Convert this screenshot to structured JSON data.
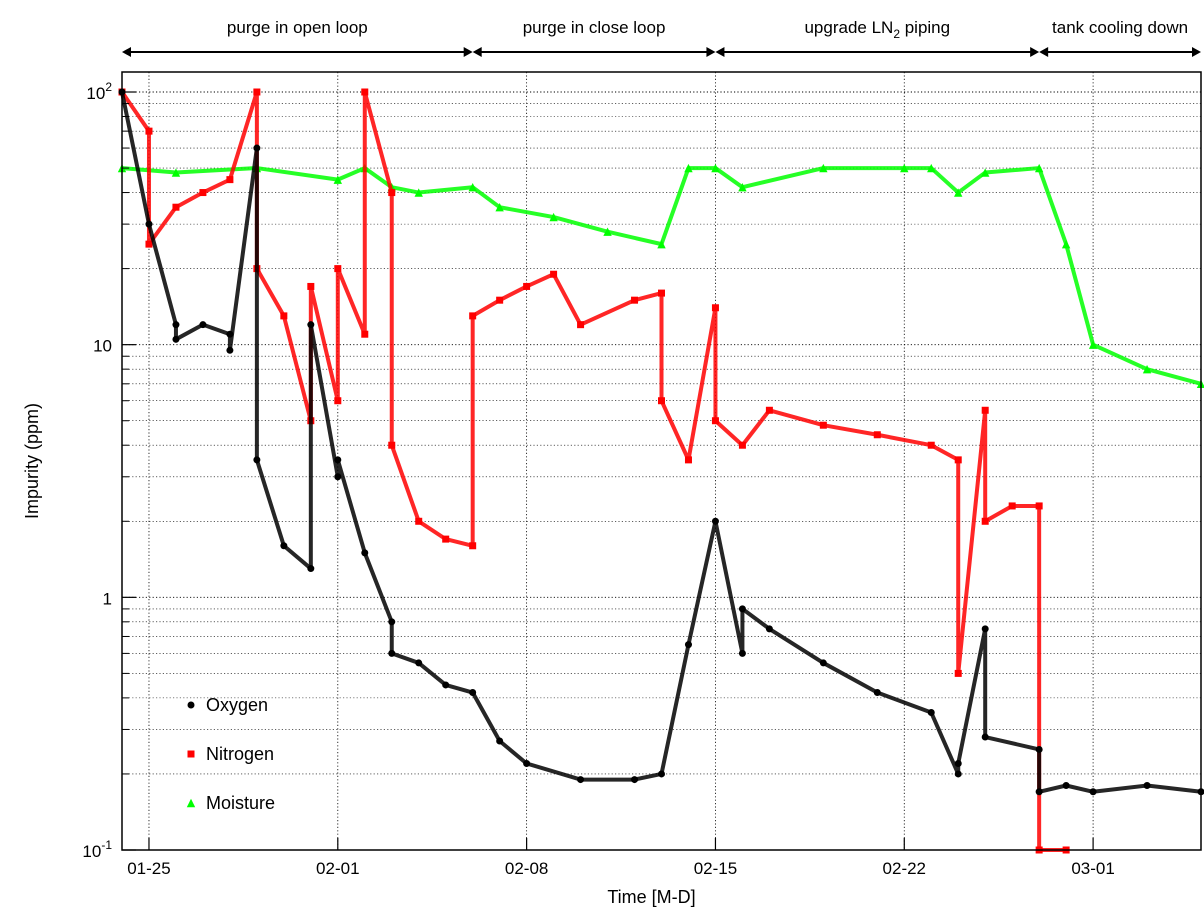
{
  "chart_data": {
    "type": "scatter",
    "title": "",
    "xlabel": "Time [M-D]",
    "ylabel": "Impurity (ppm)",
    "yscale": "log",
    "ylim": [
      0.1,
      120
    ],
    "xlim": [
      "01-24",
      "03-05"
    ],
    "x_ticks": [
      "01-25",
      "02-01",
      "02-08",
      "02-15",
      "02-22",
      "03-01"
    ],
    "y_ticks": [
      {
        "value": 100,
        "base": "10",
        "exp": "2"
      },
      {
        "value": 10,
        "text": "10"
      },
      {
        "value": 1,
        "text": "1"
      },
      {
        "value": 0.1,
        "base": "10",
        "exp": "-1"
      }
    ],
    "grid": true,
    "legend_position": "bottom-left",
    "phases": [
      {
        "label": "purge in open loop",
        "start": "01-24",
        "end": "02-06"
      },
      {
        "label": "purge in close loop",
        "start": "02-06",
        "end": "02-15"
      },
      {
        "label_parts": [
          "upgrade LN",
          "2",
          " piping"
        ],
        "start": "02-15",
        "end": "02-27"
      },
      {
        "label": "tank cooling down",
        "start": "02-27",
        "end": "03-05"
      }
    ],
    "series": [
      {
        "name": "Oxygen",
        "color": "#000000",
        "marker": "circle",
        "x": [
          "01-24",
          "01-25",
          "01-26",
          "01-26",
          "01-27",
          "01-28",
          "01-28",
          "01-29",
          "01-29",
          "01-30",
          "01-31",
          "01-31",
          "02-01",
          "02-01",
          "02-02",
          "02-03",
          "02-03",
          "02-04",
          "02-05",
          "02-06",
          "02-07",
          "02-08",
          "02-10",
          "02-12",
          "02-13",
          "02-14",
          "02-15",
          "02-16",
          "02-16",
          "02-17",
          "02-19",
          "02-21",
          "02-23",
          "02-24",
          "02-24",
          "02-25",
          "02-25",
          "02-27",
          "02-27",
          "02-28",
          "03-01",
          "03-03",
          "03-05"
        ],
        "y": [
          100,
          30,
          12,
          10.5,
          12,
          11,
          9.5,
          60,
          3.5,
          1.6,
          1.3,
          12,
          3.0,
          3.5,
          1.5,
          0.8,
          0.6,
          0.55,
          0.45,
          0.42,
          0.27,
          0.22,
          0.19,
          0.19,
          0.2,
          0.65,
          2.0,
          0.6,
          0.9,
          0.75,
          0.55,
          0.42,
          0.35,
          0.2,
          0.22,
          0.75,
          0.28,
          0.25,
          0.17,
          0.18,
          0.17,
          0.18,
          0.17
        ]
      },
      {
        "name": "Nitrogen",
        "color": "#ff0000",
        "marker": "square",
        "x": [
          "01-24",
          "01-25",
          "01-25",
          "01-26",
          "01-27",
          "01-28",
          "01-29",
          "01-29",
          "01-30",
          "01-31",
          "01-31",
          "02-01",
          "02-01",
          "02-02",
          "02-02",
          "02-03",
          "02-03",
          "02-04",
          "02-05",
          "02-06",
          "02-06",
          "02-07",
          "02-08",
          "02-09",
          "02-10",
          "02-12",
          "02-13",
          "02-13",
          "02-14",
          "02-15",
          "02-15",
          "02-16",
          "02-17",
          "02-19",
          "02-21",
          "02-23",
          "02-24",
          "02-24",
          "02-25",
          "02-25",
          "02-26",
          "02-27",
          "02-27",
          "02-28"
        ],
        "y": [
          100,
          70,
          25,
          35,
          40,
          45,
          100,
          20,
          13,
          5,
          17,
          6,
          20,
          11,
          100,
          40,
          4,
          2,
          1.7,
          1.6,
          13,
          15,
          17,
          19,
          12,
          15,
          16,
          6,
          3.5,
          14,
          5,
          4,
          5.5,
          4.8,
          4.4,
          4.0,
          3.5,
          0.5,
          5.5,
          2.0,
          2.3,
          2.3,
          0.1,
          0.1
        ]
      },
      {
        "name": "Moisture",
        "color": "#00ff00",
        "marker": "triangle",
        "x": [
          "01-24",
          "01-26",
          "01-29",
          "02-01",
          "02-02",
          "02-03",
          "02-04",
          "02-06",
          "02-07",
          "02-09",
          "02-11",
          "02-13",
          "02-14",
          "02-15",
          "02-16",
          "02-19",
          "02-22",
          "02-23",
          "02-24",
          "02-25",
          "02-27",
          "02-28",
          "03-01",
          "03-03",
          "03-05"
        ],
        "y": [
          50,
          48,
          50,
          45,
          50,
          42,
          40,
          42,
          35,
          32,
          28,
          25,
          50,
          50,
          42,
          50,
          50,
          50,
          40,
          48,
          50,
          25,
          10,
          8,
          7
        ]
      }
    ]
  }
}
